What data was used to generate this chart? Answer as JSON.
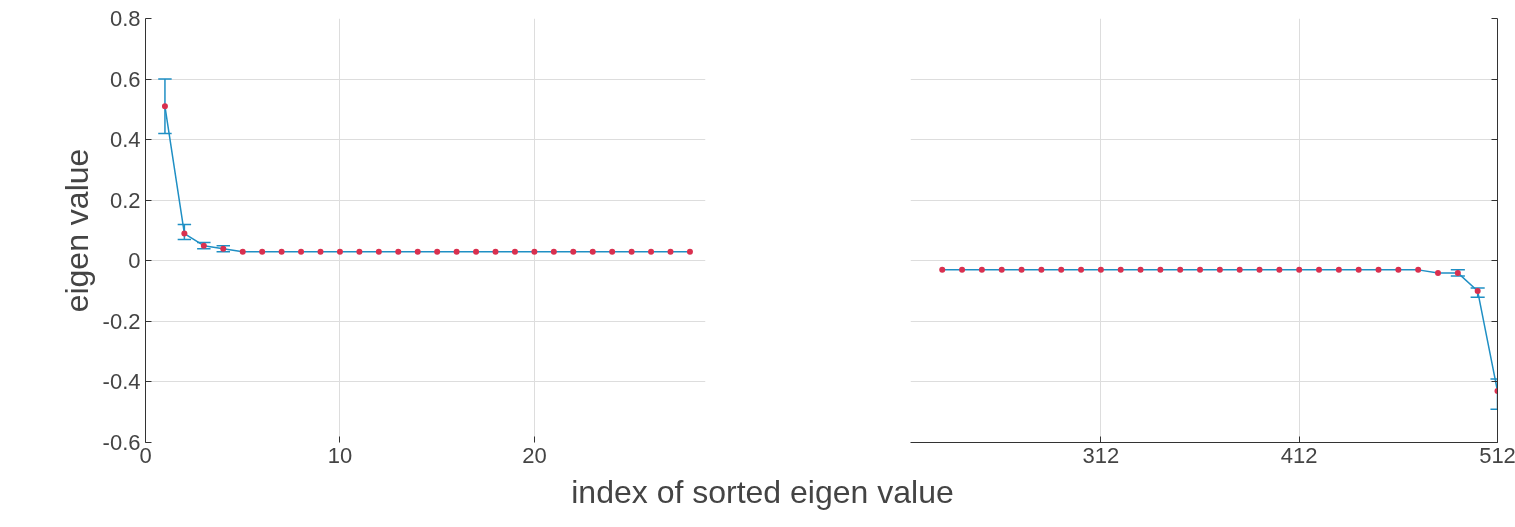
{
  "chart_data": [
    {
      "type": "line",
      "ylabel": "eigen value",
      "xlabel": "index of sorted eigen value",
      "x": [
        1,
        2,
        3,
        4,
        5,
        6,
        7,
        8,
        9,
        10,
        11,
        12,
        13,
        14,
        15,
        16,
        17,
        18,
        19,
        20,
        21,
        22,
        23,
        24,
        25,
        26,
        27,
        28
      ],
      "xlim": [
        0,
        28.8
      ],
      "xticks": [
        0,
        10,
        20
      ],
      "ylim": [
        -0.6,
        0.8
      ],
      "yticks": [
        -0.6,
        -0.4,
        -0.2,
        0,
        0.2,
        0.4,
        0.6,
        0.8
      ],
      "grid": true,
      "marker": "circle",
      "line_style": "solid",
      "series": [
        {
          "color": "#1f8fc4",
          "values": [
            0.51,
            0.09,
            0.05,
            0.04,
            0.03,
            0.03,
            0.03,
            0.03,
            0.03,
            0.03,
            0.03,
            0.03,
            0.03,
            0.03,
            0.03,
            0.03,
            0.03,
            0.03,
            0.03,
            0.03,
            0.03,
            0.03,
            0.03,
            0.03,
            0.03,
            0.03,
            0.03,
            0.03
          ],
          "colors": [
            "#d9304f",
            "#d9304f",
            "#d9304f",
            "#d9304f",
            "#d9304f",
            "#d9304f",
            "#d9304f",
            "#d9304f",
            "#d9304f",
            "#d9304f",
            "#d9304f",
            "#d9304f",
            "#d9304f",
            "#d9304f",
            "#d9304f",
            "#d9304f",
            "#d9304f",
            "#d9304f",
            "#d9304f",
            "#d9304f",
            "#d9304f",
            "#d9304f",
            "#d9304f",
            "#d9304f",
            "#d9304f",
            "#d9304f",
            "#d9304f",
            "#d9304f"
          ],
          "errors": [
            [
              0.42,
              0.6
            ],
            [
              0.07,
              0.12
            ],
            0.01,
            0.01,
            null,
            null,
            null,
            null,
            null,
            null,
            null,
            null,
            null,
            null,
            null,
            null,
            null,
            null,
            null,
            null,
            null,
            null,
            null,
            null,
            null,
            null,
            null,
            null
          ]
        }
      ]
    },
    {
      "type": "line",
      "x": [
        232,
        242,
        252,
        262,
        272,
        282,
        292,
        302,
        312,
        322,
        332,
        342,
        352,
        362,
        372,
        382,
        392,
        402,
        412,
        422,
        432,
        442,
        452,
        462,
        472,
        482,
        492,
        502,
        512
      ],
      "xlim": [
        216,
        512
      ],
      "xticks": [
        312,
        412,
        512
      ],
      "ylim": [
        -0.6,
        0.8
      ],
      "yticks": [
        -0.6,
        -0.4,
        -0.2,
        0,
        0.2,
        0.4,
        0.6,
        0.8
      ],
      "grid": true,
      "tick_labels": "x",
      "marker": "circle",
      "line_style": "solid",
      "series": [
        {
          "color": "#1f8fc4",
          "values": [
            -0.03,
            -0.03,
            -0.03,
            -0.03,
            -0.03,
            -0.03,
            -0.03,
            -0.03,
            -0.03,
            -0.03,
            -0.03,
            -0.03,
            -0.03,
            -0.03,
            -0.03,
            -0.03,
            -0.03,
            -0.03,
            -0.03,
            -0.03,
            -0.03,
            -0.03,
            -0.03,
            -0.03,
            -0.03,
            -0.04,
            -0.04,
            -0.1,
            -0.43
          ],
          "colors": [
            "#d9304f",
            "#d9304f",
            "#d9304f",
            "#d9304f",
            "#d9304f",
            "#d9304f",
            "#d9304f",
            "#d9304f",
            "#d9304f",
            "#d9304f",
            "#d9304f",
            "#d9304f",
            "#d9304f",
            "#d9304f",
            "#d9304f",
            "#d9304f",
            "#d9304f",
            "#d9304f",
            "#d9304f",
            "#d9304f",
            "#d9304f",
            "#d9304f",
            "#d9304f",
            "#d9304f",
            "#d9304f",
            "#d9304f",
            "#d9304f",
            "#d9304f",
            "#d9304f"
          ],
          "errors": [
            null,
            null,
            null,
            null,
            null,
            null,
            null,
            null,
            null,
            null,
            null,
            null,
            null,
            null,
            null,
            null,
            null,
            null,
            null,
            null,
            null,
            null,
            null,
            null,
            null,
            null,
            0.01,
            [
              -0.12,
              -0.09
            ],
            [
              -0.49,
              -0.39
            ]
          ]
        }
      ]
    }
  ]
}
